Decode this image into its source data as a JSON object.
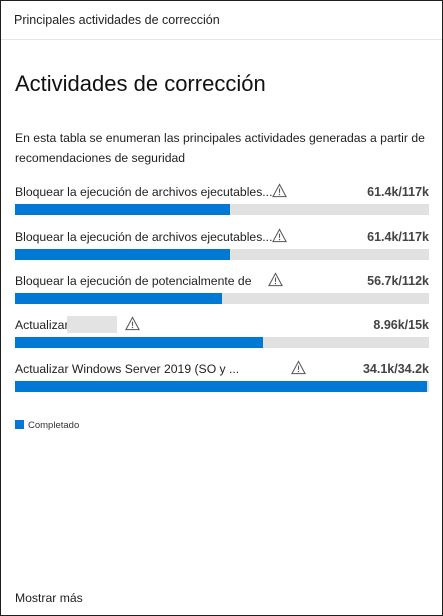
{
  "header": {
    "title": "Principales actividades de corrección"
  },
  "main": {
    "title": "Actividades de corrección",
    "description": "En esta tabla se enumeran las principales actividades generadas a partir de recomendaciones de seguridad",
    "activities": [
      {
        "label": "Bloquear la ejecución de archivos ejecutables...",
        "value": "61.4k/117k",
        "progress": 0.52,
        "icon": "warning-icon"
      },
      {
        "label": "Bloquear la ejecución de archivos ejecutables...",
        "value": "61.4k/117k",
        "progress": 0.52,
        "icon": "warning-icon"
      },
      {
        "label": "Bloquear la ejecución de potencialmente de",
        "value": "56.7k/112k",
        "progress": 0.5,
        "icon": "warning-icon"
      },
      {
        "label": "Actualizar",
        "value": "8.96k/15k",
        "progress": 0.6,
        "icon": "warning-icon",
        "redacted": true
      },
      {
        "label": "Actualizar Windows Server 2019 (SO y ...",
        "value": "34.1k/34.2k",
        "progress": 0.995,
        "icon": "warning-icon"
      }
    ]
  },
  "legend": {
    "completed_label": "Completado",
    "completed_color": "#0078d4"
  },
  "footer": {
    "show_more_label": "Mostrar más"
  },
  "colors": {
    "bar_fill": "#0078d4",
    "bar_track": "#e1e1e1"
  }
}
